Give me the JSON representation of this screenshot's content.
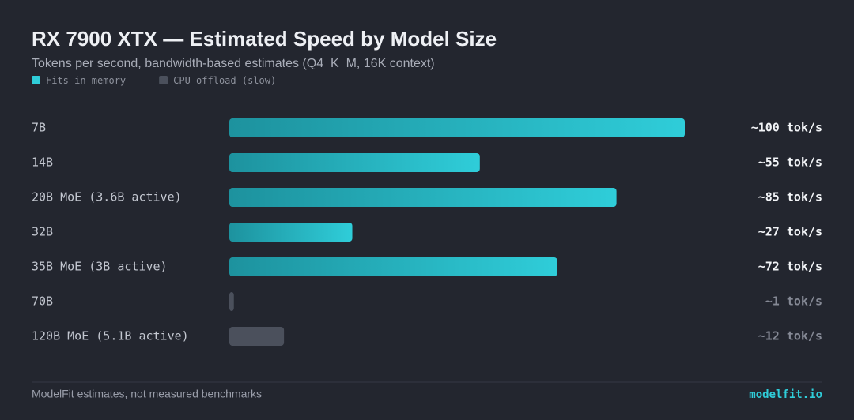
{
  "chart_data": {
    "type": "bar",
    "orientation": "horizontal",
    "title": "RX 7900 XTX — Estimated Speed by Model Size",
    "subtitle": "Tokens per second, bandwidth-based estimates (Q4_K_M, 16K context)",
    "categories": [
      "7B",
      "14B",
      "20B MoE (3.6B active)",
      "32B",
      "35B MoE (3B active)",
      "70B",
      "120B MoE (5.1B active)"
    ],
    "series": [
      {
        "name": "Fits in memory",
        "color": "#2fcdd9",
        "values": [
          100,
          55,
          85,
          27,
          72,
          null,
          null
        ],
        "value_labels": [
          "~100 tok/s",
          "~55 tok/s",
          "~85 tok/s",
          "~27 tok/s",
          "~72 tok/s",
          null,
          null
        ]
      },
      {
        "name": "CPU offload (slow)",
        "color": "#4b505c",
        "values": [
          null,
          null,
          null,
          null,
          null,
          1,
          12
        ],
        "value_labels": [
          null,
          null,
          null,
          null,
          null,
          "~1 tok/s",
          "~12 tok/s"
        ]
      }
    ],
    "xlim": [
      0,
      100
    ],
    "footer": "ModelFit estimates, not measured benchmarks",
    "brand": "modelfit.io"
  }
}
